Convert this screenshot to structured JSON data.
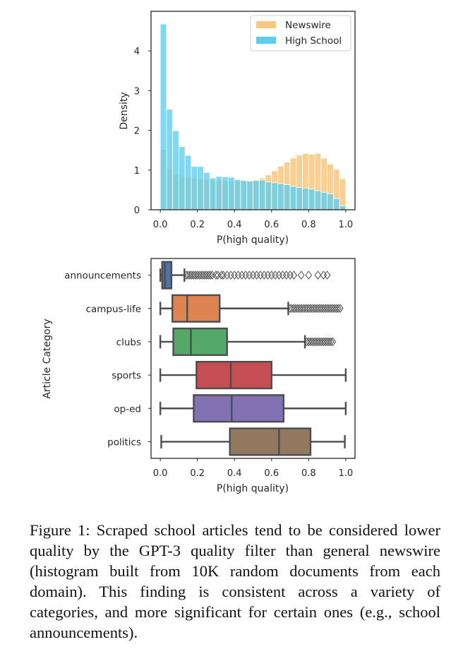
{
  "chart_data": [
    {
      "type": "histogram",
      "xlabel": "P(high quality)",
      "ylabel": "Density",
      "xlim": [
        -0.05,
        1.05
      ],
      "ylim": [
        0,
        5.0
      ],
      "xticks": [
        "0.0",
        "0.2",
        "0.4",
        "0.6",
        "0.8",
        "1.0"
      ],
      "yticks": [
        "0",
        "1",
        "2",
        "3",
        "4"
      ],
      "legend_position": "top-right",
      "bin_width": 0.0333,
      "bin_starts": [
        0.0,
        0.0333,
        0.0667,
        0.1,
        0.1333,
        0.1667,
        0.2,
        0.2333,
        0.2667,
        0.3,
        0.3333,
        0.3667,
        0.4,
        0.4333,
        0.4667,
        0.5,
        0.5333,
        0.5667,
        0.6,
        0.6333,
        0.6667,
        0.7,
        0.7333,
        0.7667,
        0.8,
        0.8333,
        0.8667,
        0.9,
        0.9333,
        0.9667
      ],
      "series": [
        {
          "name": "Newswire",
          "color": "#f9c77e",
          "values": [
            1.52,
            1.05,
            0.88,
            0.85,
            0.82,
            0.8,
            0.78,
            0.76,
            0.75,
            0.74,
            0.73,
            0.72,
            0.72,
            0.72,
            0.74,
            0.76,
            0.8,
            0.88,
            0.98,
            1.1,
            1.2,
            1.3,
            1.38,
            1.42,
            1.4,
            1.42,
            1.3,
            1.15,
            1.02,
            0.78
          ]
        },
        {
          "name": "High School",
          "color": "#5ccdf0",
          "values": [
            4.68,
            2.53,
            1.99,
            1.59,
            1.37,
            1.09,
            1.09,
            0.94,
            0.8,
            0.84,
            0.83,
            0.82,
            0.76,
            0.74,
            0.72,
            0.74,
            0.75,
            0.7,
            0.68,
            0.66,
            0.63,
            0.59,
            0.56,
            0.54,
            0.52,
            0.48,
            0.44,
            0.4,
            0.28,
            0.1
          ]
        }
      ]
    },
    {
      "type": "box",
      "xlabel": "P(high quality)",
      "ylabel": "Article Category",
      "xlim": [
        -0.05,
        1.05
      ],
      "xticks": [
        "0.0",
        "0.2",
        "0.4",
        "0.6",
        "0.8",
        "1.0"
      ],
      "categories": [
        "announcements",
        "campus-life",
        "clubs",
        "sports",
        "op-ed",
        "politics"
      ],
      "boxes": [
        {
          "name": "announcements",
          "color": "#4c72b0",
          "min": 0.0,
          "q1": 0.01,
          "median": 0.025,
          "q3": 0.06,
          "max": 0.13,
          "outliers": [
            0.14,
            0.15,
            0.16,
            0.17,
            0.18,
            0.19,
            0.2,
            0.21,
            0.22,
            0.23,
            0.24,
            0.25,
            0.26,
            0.27,
            0.28,
            0.3,
            0.31,
            0.33,
            0.34,
            0.36,
            0.38,
            0.4,
            0.42,
            0.44,
            0.46,
            0.48,
            0.5,
            0.52,
            0.54,
            0.56,
            0.58,
            0.6,
            0.62,
            0.64,
            0.66,
            0.68,
            0.7,
            0.72,
            0.76,
            0.8,
            0.85,
            0.88,
            0.9
          ]
        },
        {
          "name": "campus-life",
          "color": "#dd8452",
          "min": 0.0,
          "q1": 0.065,
          "median": 0.145,
          "q3": 0.32,
          "max": 0.69,
          "outliers": [
            0.7,
            0.71,
            0.72,
            0.73,
            0.74,
            0.75,
            0.76,
            0.77,
            0.78,
            0.79,
            0.8,
            0.81,
            0.82,
            0.83,
            0.84,
            0.85,
            0.86,
            0.87,
            0.88,
            0.89,
            0.9,
            0.91,
            0.92,
            0.93,
            0.94,
            0.95,
            0.96,
            0.97
          ]
        },
        {
          "name": "clubs",
          "color": "#55a868",
          "min": 0.0,
          "q1": 0.07,
          "median": 0.165,
          "q3": 0.36,
          "max": 0.78,
          "outliers": [
            0.79,
            0.8,
            0.81,
            0.82,
            0.83,
            0.84,
            0.85,
            0.86,
            0.87,
            0.88,
            0.89,
            0.9,
            0.91,
            0.92,
            0.93
          ]
        },
        {
          "name": "sports",
          "color": "#c44e52",
          "min": 0.0,
          "q1": 0.195,
          "median": 0.38,
          "q3": 0.6,
          "max": 1.0,
          "outliers": []
        },
        {
          "name": "op-ed",
          "color": "#8172b3",
          "min": 0.0,
          "q1": 0.18,
          "median": 0.385,
          "q3": 0.665,
          "max": 1.0,
          "outliers": []
        },
        {
          "name": "politics",
          "color": "#937860",
          "min": 0.005,
          "q1": 0.375,
          "median": 0.64,
          "q3": 0.81,
          "max": 0.995,
          "outliers": []
        }
      ]
    }
  ],
  "caption": "Figure 1: Scraped school articles tend to be considered lower quality by the GPT-3 quality filter than general newswire (histogram built from 10K random documents from each domain). This finding is consistent across a variety of categories, and more significant for certain ones (e.g., school announcements)."
}
